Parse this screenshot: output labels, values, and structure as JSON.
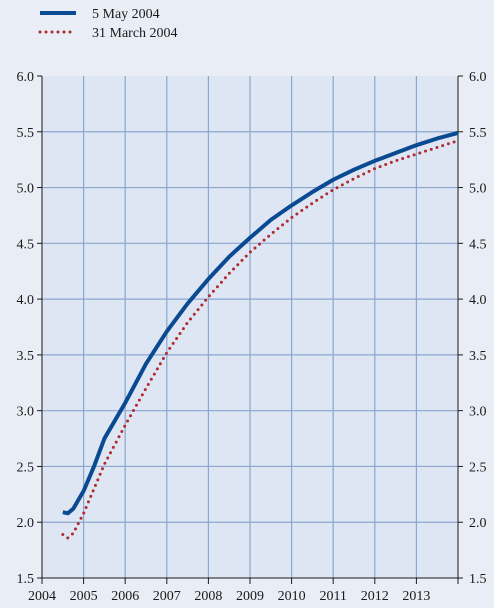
{
  "chart_data": {
    "type": "line",
    "title": "",
    "xlabel": "",
    "ylabel": "",
    "xlim": [
      2004.0,
      2014.0
    ],
    "ylim": [
      1.5,
      6.0
    ],
    "grid": true,
    "legend_position": "top-left",
    "x_ticks": [
      2004,
      2005,
      2006,
      2007,
      2008,
      2009,
      2010,
      2011,
      2012,
      2013
    ],
    "x_tick_labels": [
      "2004",
      "2005",
      "2006",
      "2007",
      "2008",
      "2009",
      "2010",
      "2011",
      "2012",
      "2013"
    ],
    "y_ticks": [
      1.5,
      2.0,
      2.5,
      3.0,
      3.5,
      4.0,
      4.5,
      5.0,
      5.5,
      6.0
    ],
    "y_tick_labels": [
      "1.5",
      "2.0",
      "2.5",
      "3.0",
      "3.5",
      "4.0",
      "4.5",
      "5.0",
      "5.5",
      "6.0"
    ],
    "series": [
      {
        "name": "5 May 2004",
        "style": "solid",
        "color": "#0a4a92",
        "x": [
          2004.5,
          2004.62,
          2004.75,
          2005.0,
          2005.25,
          2005.5,
          2006.0,
          2006.5,
          2007.0,
          2007.5,
          2008.0,
          2008.5,
          2009.0,
          2009.5,
          2010.0,
          2010.5,
          2011.0,
          2011.5,
          2012.0,
          2012.5,
          2013.0,
          2013.5,
          2014.0
        ],
        "values": [
          2.09,
          2.08,
          2.12,
          2.28,
          2.5,
          2.75,
          3.07,
          3.42,
          3.71,
          3.96,
          4.18,
          4.38,
          4.55,
          4.71,
          4.84,
          4.96,
          5.07,
          5.16,
          5.24,
          5.31,
          5.38,
          5.44,
          5.49
        ]
      },
      {
        "name": "31 March 2004",
        "style": "dotted",
        "color": "#b02a2e",
        "x": [
          2004.5,
          2004.62,
          2004.75,
          2005.0,
          2005.25,
          2005.5,
          2006.0,
          2006.5,
          2007.0,
          2007.5,
          2008.0,
          2008.5,
          2009.0,
          2009.5,
          2010.0,
          2010.5,
          2011.0,
          2011.5,
          2012.0,
          2012.5,
          2013.0,
          2013.5,
          2014.0
        ],
        "values": [
          1.89,
          1.86,
          1.9,
          2.08,
          2.3,
          2.52,
          2.87,
          3.2,
          3.52,
          3.79,
          4.02,
          4.23,
          4.42,
          4.58,
          4.73,
          4.86,
          4.98,
          5.08,
          5.17,
          5.24,
          5.3,
          5.36,
          5.42
        ]
      }
    ]
  }
}
